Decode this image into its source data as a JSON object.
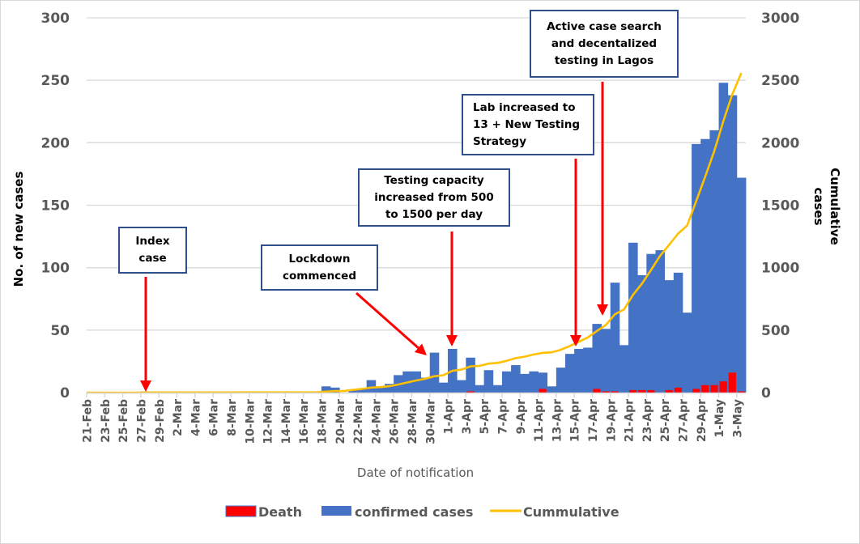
{
  "chart_data": {
    "type": "bar",
    "title": "",
    "xlabel": "Date of notification",
    "ylabel": "No. of new cases",
    "y2label": "Cumulative cases",
    "ylim": [
      0,
      300
    ],
    "y2lim": [
      0,
      3000
    ],
    "yticks": [
      0,
      50,
      100,
      150,
      200,
      250,
      300
    ],
    "y2ticks": [
      0,
      500,
      1000,
      1500,
      2000,
      2500,
      3000
    ],
    "grid": true,
    "legend_position": "bottom",
    "categories": [
      "21-Feb",
      "22-Feb",
      "23-Feb",
      "24-Feb",
      "25-Feb",
      "26-Feb",
      "27-Feb",
      "28-Feb",
      "29-Feb",
      "1-Mar",
      "2-Mar",
      "3-Mar",
      "4-Mar",
      "5-Mar",
      "6-Mar",
      "7-Mar",
      "8-Mar",
      "9-Mar",
      "10-Mar",
      "11-Mar",
      "12-Mar",
      "13-Mar",
      "14-Mar",
      "15-Mar",
      "16-Mar",
      "17-Mar",
      "18-Mar",
      "19-Mar",
      "20-Mar",
      "21-Mar",
      "22-Mar",
      "23-Mar",
      "24-Mar",
      "25-Mar",
      "26-Mar",
      "27-Mar",
      "28-Mar",
      "29-Mar",
      "30-Mar",
      "31-Mar",
      "1-Apr",
      "2-Apr",
      "3-Apr",
      "4-Apr",
      "5-Apr",
      "6-Apr",
      "7-Apr",
      "8-Apr",
      "9-Apr",
      "10-Apr",
      "11-Apr",
      "12-Apr",
      "13-Apr",
      "14-Apr",
      "15-Apr",
      "16-Apr",
      "17-Apr",
      "18-Apr",
      "19-Apr",
      "20-Apr",
      "21-Apr",
      "22-Apr",
      "23-Apr",
      "24-Apr",
      "25-Apr",
      "26-Apr",
      "27-Apr",
      "28-Apr",
      "29-Apr",
      "30-Apr",
      "1-May",
      "2-May",
      "3-May"
    ],
    "xtick_labels": [
      "21-Feb",
      "23-Feb",
      "25-Feb",
      "27-Feb",
      "29-Feb",
      "2-Mar",
      "4-Mar",
      "6-Mar",
      "8-Mar",
      "10-Mar",
      "12-Mar",
      "14-Mar",
      "16-Mar",
      "18-Mar",
      "20-Mar",
      "22-Mar",
      "24-Mar",
      "26-Mar",
      "28-Mar",
      "30-Mar",
      "1-Apr",
      "3-Apr",
      "5-Apr",
      "7-Apr",
      "9-Apr",
      "11-Apr",
      "13-Apr",
      "15-Apr",
      "17-Apr",
      "19-Apr",
      "21-Apr",
      "23-Apr",
      "25-Apr",
      "27-Apr",
      "29-Apr",
      "1-May",
      "3-May"
    ],
    "series": [
      {
        "name": "Death",
        "type": "bar",
        "axis": "left",
        "color": "#ff0000",
        "values": [
          0,
          0,
          0,
          0,
          0,
          0,
          0,
          0,
          0,
          0,
          0,
          0,
          0,
          0,
          0,
          0,
          0,
          0,
          0,
          0,
          0,
          0,
          0,
          0,
          0,
          0,
          0,
          0,
          0,
          0,
          0,
          0,
          0,
          0,
          0,
          0,
          0,
          0,
          0,
          0,
          0,
          0,
          1,
          0,
          0,
          0,
          0,
          0,
          0,
          0,
          3,
          0,
          0,
          0,
          0,
          0,
          3,
          1,
          1,
          0,
          2,
          2,
          2,
          0,
          2,
          4,
          0,
          3,
          6,
          6,
          9,
          16,
          1
        ]
      },
      {
        "name": "confirmed cases",
        "type": "bar",
        "axis": "left",
        "color": "#4472c4",
        "values": [
          0,
          0,
          0,
          0,
          0,
          0,
          1,
          0,
          0,
          0,
          0,
          0,
          0,
          0,
          0,
          0,
          0,
          1,
          0,
          0,
          0,
          0,
          0,
          0,
          0,
          1,
          5,
          4,
          0,
          2,
          3,
          10,
          4,
          7,
          14,
          17,
          17,
          12,
          32,
          8,
          35,
          10,
          28,
          6,
          18,
          6,
          17,
          22,
          15,
          17,
          16,
          5,
          20,
          31,
          35,
          36,
          55,
          51,
          88,
          38,
          120,
          94,
          111,
          114,
          90,
          96,
          64,
          199,
          203,
          210,
          248,
          238,
          172
        ]
      },
      {
        "name": "Cummulative",
        "type": "line",
        "axis": "right",
        "color": "#ffc000",
        "values": [
          0,
          0,
          0,
          0,
          0,
          0,
          1,
          1,
          1,
          1,
          1,
          1,
          1,
          1,
          1,
          1,
          1,
          2,
          2,
          2,
          2,
          2,
          2,
          2,
          2,
          3,
          8,
          12,
          12,
          22,
          30,
          40,
          44,
          51,
          65,
          81,
          97,
          111,
          131,
          139,
          174,
          184,
          210,
          214,
          232,
          238,
          254,
          276,
          288,
          305,
          318,
          323,
          343,
          373,
          407,
          442,
          493,
          542,
          627,
          665,
          782,
          873,
          981,
          1095,
          1182,
          1273,
          1337,
          1532,
          1728,
          1932,
          2170,
          2388,
          2558
        ]
      }
    ],
    "annotations": [
      {
        "text": "Index\ncase",
        "target": "27-Feb"
      },
      {
        "text": "Lockdown\ncommenced",
        "target": "30-Mar"
      },
      {
        "text": "Testing capacity\nincreased from 500\nto 1500 per day",
        "target": "1-Apr"
      },
      {
        "text": "Lab increased to\n13 + New Testing\nStrategy",
        "target": "15-Apr"
      },
      {
        "text": "Active case search\nand decentalized\ntesting in  Lagos",
        "target": "18-Apr"
      }
    ]
  },
  "legend": {
    "death": "Death",
    "confirmed": "confirmed cases",
    "cumulative": "Cummulative"
  },
  "axes": {
    "y_title": "No. of new cases",
    "y2_title_line1": "Cumulative",
    "y2_title_line2": "cases",
    "x_title": "Date of notification"
  }
}
